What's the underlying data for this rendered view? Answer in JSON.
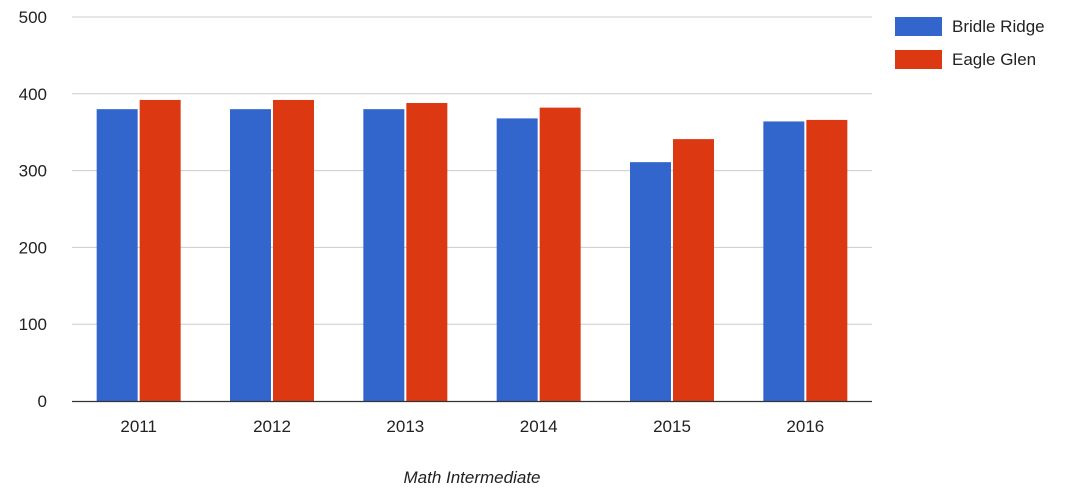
{
  "chart_data": {
    "type": "bar",
    "categories": [
      "2011",
      "2012",
      "2013",
      "2014",
      "2015",
      "2016"
    ],
    "series": [
      {
        "name": "Bridle Ridge",
        "color": "#3366cc",
        "values": [
          380,
          380,
          380,
          368,
          311,
          364
        ]
      },
      {
        "name": "Eagle Glen",
        "color": "#dc3912",
        "values": [
          392,
          392,
          388,
          382,
          341,
          366
        ]
      }
    ],
    "title": "",
    "xlabel": "Math Intermediate",
    "ylabel": "",
    "ylim": [
      0,
      500
    ],
    "yticks": [
      "0",
      "100",
      "200",
      "300",
      "400",
      "500"
    ],
    "grid": true,
    "legend": "right"
  }
}
